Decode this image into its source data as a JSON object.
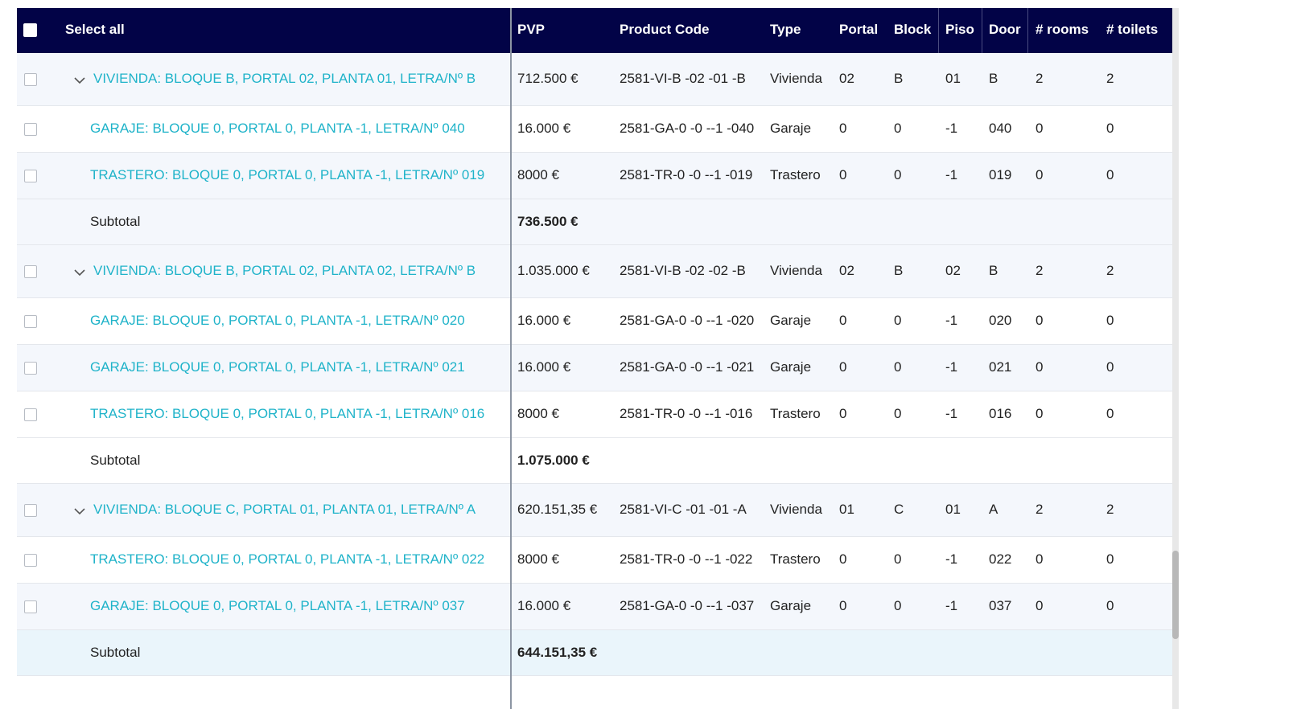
{
  "header": {
    "select_all": "Select all",
    "columns": [
      "PVP",
      "Product Code",
      "Type",
      "Portal",
      "Block",
      "Piso",
      "Door",
      "# rooms",
      "# toilets"
    ]
  },
  "rows": [
    {
      "kind": "parent",
      "label": "VIVIENDA: BLOQUE B, PORTAL 02, PLANTA 01, LETRA/Nº B",
      "pvp": "712.500 €",
      "code": "2581-VI-B -02 -01 -B",
      "type": "Vivienda",
      "portal": "02",
      "block": "B",
      "piso": "01",
      "door": "B",
      "rooms": "2",
      "toilets": "2"
    },
    {
      "kind": "child",
      "label": "GARAJE: BLOQUE 0, PORTAL 0, PLANTA -1, LETRA/Nº 040",
      "pvp": "16.000 €",
      "code": "2581-GA-0 -0 --1 -040",
      "type": "Garaje",
      "portal": "0",
      "block": "0",
      "piso": "-1",
      "door": "040",
      "rooms": "0",
      "toilets": "0"
    },
    {
      "kind": "child",
      "label": "TRASTERO: BLOQUE 0, PORTAL 0, PLANTA -1, LETRA/Nº 019",
      "pvp": "8000 €",
      "code": "2581-TR-0 -0 --1 -019",
      "type": "Trastero",
      "portal": "0",
      "block": "0",
      "piso": "-1",
      "door": "019",
      "rooms": "0",
      "toilets": "0"
    },
    {
      "kind": "subtotal",
      "label": "Subtotal",
      "pvp": "736.500 €"
    },
    {
      "kind": "parent",
      "label": "VIVIENDA: BLOQUE B, PORTAL 02, PLANTA 02, LETRA/Nº B",
      "pvp": "1.035.000 €",
      "code": "2581-VI-B -02 -02 -B",
      "type": "Vivienda",
      "portal": "02",
      "block": "B",
      "piso": "02",
      "door": "B",
      "rooms": "2",
      "toilets": "2"
    },
    {
      "kind": "child",
      "label": "GARAJE: BLOQUE 0, PORTAL 0, PLANTA -1, LETRA/Nº 020",
      "pvp": "16.000 €",
      "code": "2581-GA-0 -0 --1 -020",
      "type": "Garaje",
      "portal": "0",
      "block": "0",
      "piso": "-1",
      "door": "020",
      "rooms": "0",
      "toilets": "0"
    },
    {
      "kind": "child",
      "label": "GARAJE: BLOQUE 0, PORTAL 0, PLANTA -1, LETRA/Nº 021",
      "pvp": "16.000 €",
      "code": "2581-GA-0 -0 --1 -021",
      "type": "Garaje",
      "portal": "0",
      "block": "0",
      "piso": "-1",
      "door": "021",
      "rooms": "0",
      "toilets": "0"
    },
    {
      "kind": "child",
      "label": "TRASTERO: BLOQUE 0, PORTAL 0, PLANTA -1, LETRA/Nº 016",
      "pvp": "8000 €",
      "code": "2581-TR-0 -0 --1 -016",
      "type": "Trastero",
      "portal": "0",
      "block": "0",
      "piso": "-1",
      "door": "016",
      "rooms": "0",
      "toilets": "0"
    },
    {
      "kind": "subtotal",
      "label": "Subtotal",
      "pvp": "1.075.000 €"
    },
    {
      "kind": "parent",
      "label": "VIVIENDA: BLOQUE C, PORTAL 01, PLANTA 01, LETRA/Nº A",
      "pvp": "620.151,35 €",
      "code": "2581-VI-C -01 -01 -A",
      "type": "Vivienda",
      "portal": "01",
      "block": "C",
      "piso": "01",
      "door": "A",
      "rooms": "2",
      "toilets": "2"
    },
    {
      "kind": "child",
      "label": "TRASTERO: BLOQUE 0, PORTAL 0, PLANTA -1, LETRA/Nº 022",
      "pvp": "8000 €",
      "code": "2581-TR-0 -0 --1 -022",
      "type": "Trastero",
      "portal": "0",
      "block": "0",
      "piso": "-1",
      "door": "022",
      "rooms": "0",
      "toilets": "0"
    },
    {
      "kind": "child",
      "label": "GARAJE: BLOQUE 0, PORTAL 0, PLANTA -1, LETRA/Nº 037",
      "pvp": "16.000 €",
      "code": "2581-GA-0 -0 --1 -037",
      "type": "Garaje",
      "portal": "0",
      "block": "0",
      "piso": "-1",
      "door": "037",
      "rooms": "0",
      "toilets": "0"
    },
    {
      "kind": "subtotal",
      "label": "Subtotal",
      "pvp": "644.151,35 €"
    }
  ],
  "colors": {
    "header_bg": "#020347",
    "link": "#1fb3c9",
    "row_alt": "#f4f7fc"
  },
  "icons": {
    "expand": "chevron-down-icon",
    "select": "checkbox-icon"
  }
}
